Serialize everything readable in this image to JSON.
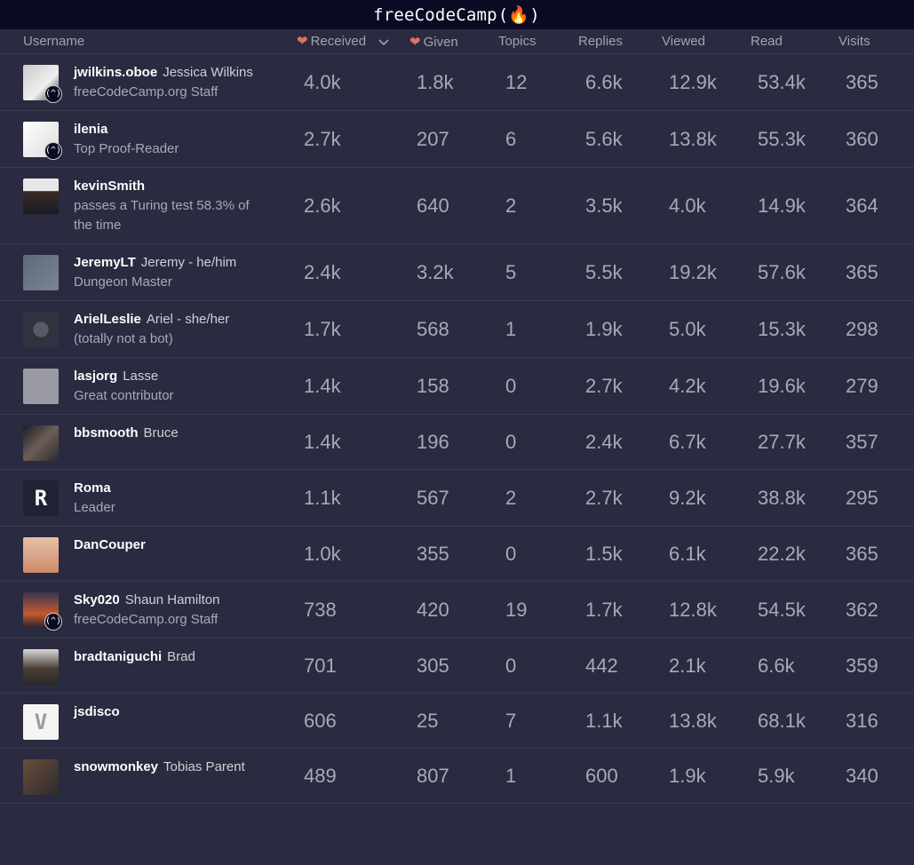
{
  "app": {
    "brand": "freeCodeCamp",
    "flame": "(🔥)"
  },
  "columns": {
    "username": "Username",
    "received": "Received",
    "given": "Given",
    "topics": "Topics",
    "replies": "Replies",
    "viewed": "Viewed",
    "read": "Read",
    "visits": "Visits"
  },
  "rows": [
    {
      "username": "jwilkins.oboe",
      "name": "Jessica Wilkins",
      "title": "freeCodeCamp.org Staff",
      "received": "4.0k",
      "given": "1.8k",
      "topics": "12",
      "replies": "6.6k",
      "viewed": "12.9k",
      "read": "53.4k",
      "visits": "365"
    },
    {
      "username": "ilenia",
      "name": "",
      "title": "Top Proof-Reader",
      "received": "2.7k",
      "given": "207",
      "topics": "6",
      "replies": "5.6k",
      "viewed": "13.8k",
      "read": "55.3k",
      "visits": "360"
    },
    {
      "username": "kevinSmith",
      "name": "",
      "title": "passes a Turing test 58.3% of the time",
      "received": "2.6k",
      "given": "640",
      "topics": "2",
      "replies": "3.5k",
      "viewed": "4.0k",
      "read": "14.9k",
      "visits": "364"
    },
    {
      "username": "JeremyLT",
      "name": "Jeremy - he/him",
      "title": "Dungeon Master",
      "received": "2.4k",
      "given": "3.2k",
      "topics": "5",
      "replies": "5.5k",
      "viewed": "19.2k",
      "read": "57.6k",
      "visits": "365"
    },
    {
      "username": "ArielLeslie",
      "name": "Ariel - she/her",
      "title": "(totally not a bot)",
      "received": "1.7k",
      "given": "568",
      "topics": "1",
      "replies": "1.9k",
      "viewed": "5.0k",
      "read": "15.3k",
      "visits": "298"
    },
    {
      "username": "lasjorg",
      "name": "Lasse",
      "title": "Great contributor",
      "received": "1.4k",
      "given": "158",
      "topics": "0",
      "replies": "2.7k",
      "viewed": "4.2k",
      "read": "19.6k",
      "visits": "279"
    },
    {
      "username": "bbsmooth",
      "name": "Bruce",
      "title": "",
      "received": "1.4k",
      "given": "196",
      "topics": "0",
      "replies": "2.4k",
      "viewed": "6.7k",
      "read": "27.7k",
      "visits": "357"
    },
    {
      "username": "Roma",
      "name": "",
      "title": "Leader",
      "received": "1.1k",
      "given": "567",
      "topics": "2",
      "replies": "2.7k",
      "viewed": "9.2k",
      "read": "38.8k",
      "visits": "295"
    },
    {
      "username": "DanCouper",
      "name": "",
      "title": "",
      "received": "1.0k",
      "given": "355",
      "topics": "0",
      "replies": "1.5k",
      "viewed": "6.1k",
      "read": "22.2k",
      "visits": "365"
    },
    {
      "username": "Sky020",
      "name": "Shaun Hamilton",
      "title": "freeCodeCamp.org Staff",
      "received": "738",
      "given": "420",
      "topics": "19",
      "replies": "1.7k",
      "viewed": "12.8k",
      "read": "54.5k",
      "visits": "362"
    },
    {
      "username": "bradtaniguchi",
      "name": "Brad",
      "title": "",
      "received": "701",
      "given": "305",
      "topics": "0",
      "replies": "442",
      "viewed": "2.1k",
      "read": "6.6k",
      "visits": "359"
    },
    {
      "username": "jsdisco",
      "name": "",
      "title": "",
      "received": "606",
      "given": "25",
      "topics": "7",
      "replies": "1.1k",
      "viewed": "13.8k",
      "read": "68.1k",
      "visits": "316"
    },
    {
      "username": "snowmonkey",
      "name": "Tobias Parent",
      "title": "",
      "received": "489",
      "given": "807",
      "topics": "1",
      "replies": "600",
      "viewed": "1.9k",
      "read": "5.9k",
      "visits": "340"
    }
  ]
}
